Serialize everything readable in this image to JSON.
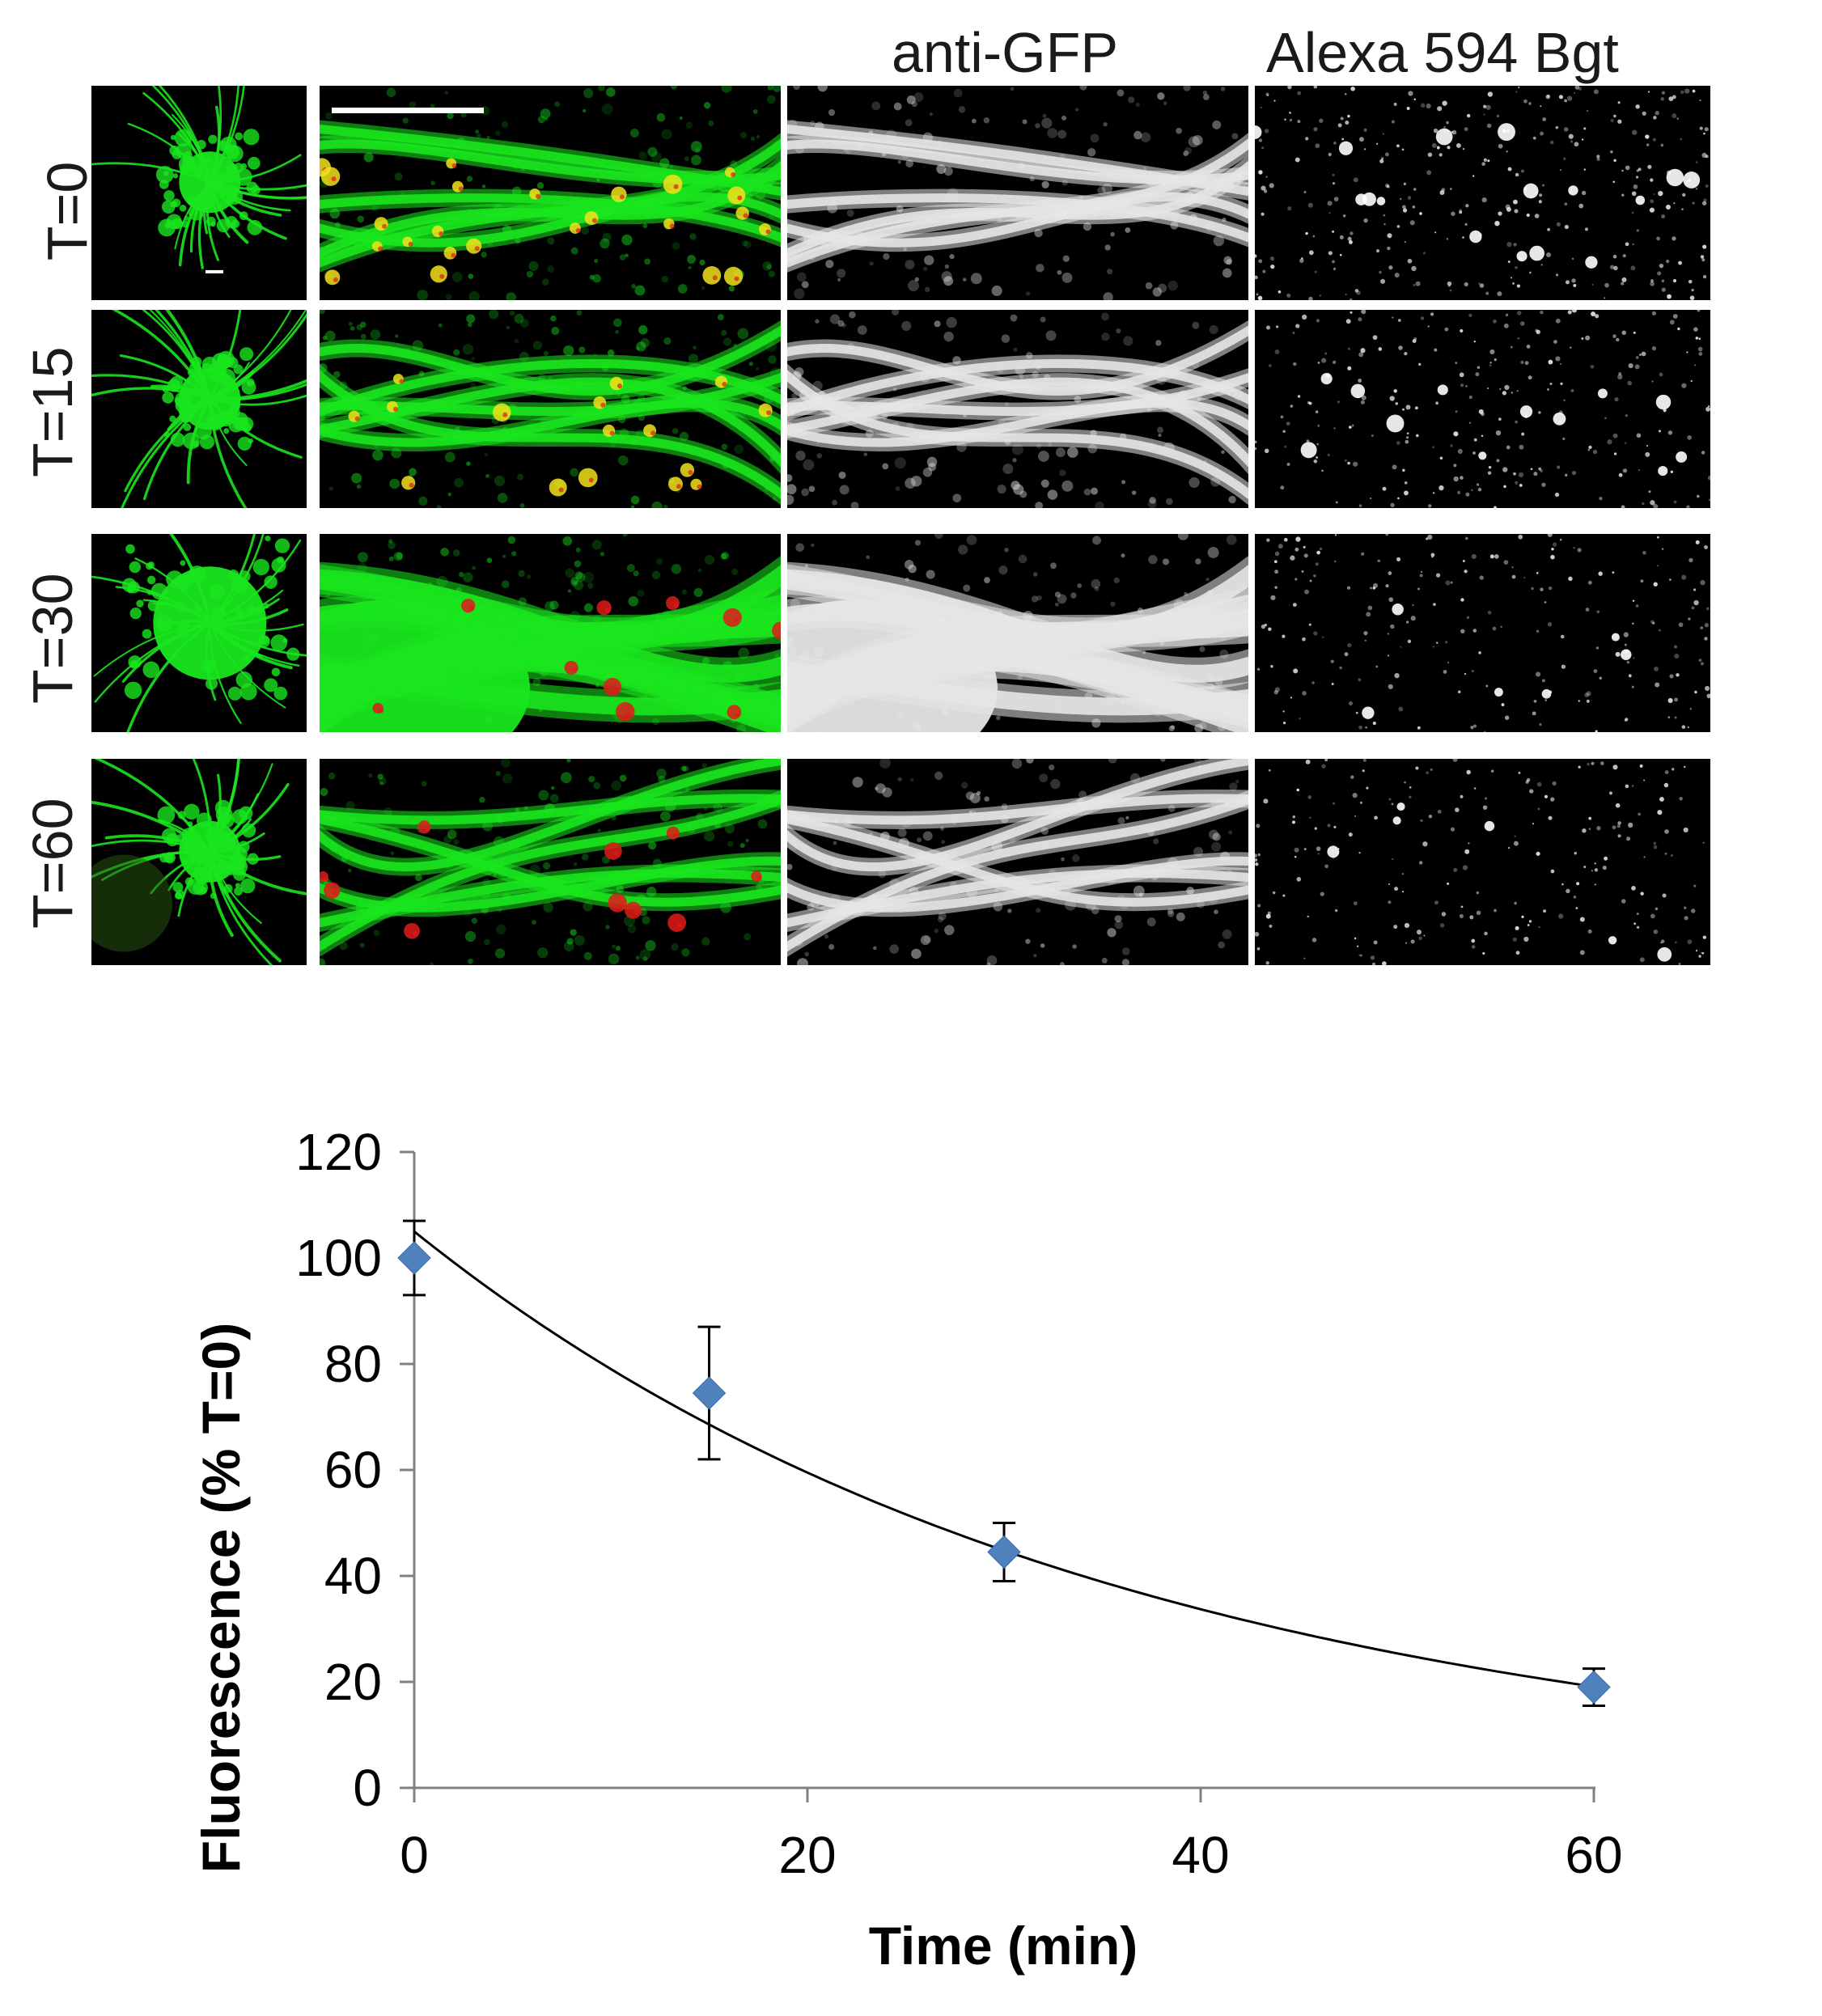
{
  "figure": {
    "columns": {
      "anti_gfp": "anti-GFP",
      "bgt": "Alexa 594 Bgt"
    },
    "rows": [
      {
        "label": "T=0"
      },
      {
        "label": "T=15"
      },
      {
        "label": "T=30"
      },
      {
        "label": "T=60"
      }
    ],
    "colors": {
      "merge_green": "#19e61e",
      "merge_red": "#e01a1a",
      "overlap_yellow": "#f2e21a"
    }
  },
  "chart_data": {
    "type": "scatter",
    "xlabel": "Time (min)",
    "ylabel": "Fluorescence (% T=0)",
    "x_ticks": [
      "0",
      "20",
      "40",
      "60"
    ],
    "y_ticks": [
      "0",
      "20",
      "40",
      "60",
      "80",
      "100",
      "120"
    ],
    "xlim": [
      0,
      60
    ],
    "ylim": [
      0,
      120
    ],
    "grid": false,
    "marker_color": "#4f81bd",
    "points": [
      {
        "x": 0,
        "y": 100,
        "err": 7
      },
      {
        "x": 15,
        "y": 74.5,
        "err": 12.5
      },
      {
        "x": 30,
        "y": 44.5,
        "err": 5.5
      },
      {
        "x": 60,
        "y": 19,
        "err": 3.5
      }
    ],
    "fit": {
      "type": "exponential",
      "a": 105,
      "k": 0.0284
    }
  }
}
